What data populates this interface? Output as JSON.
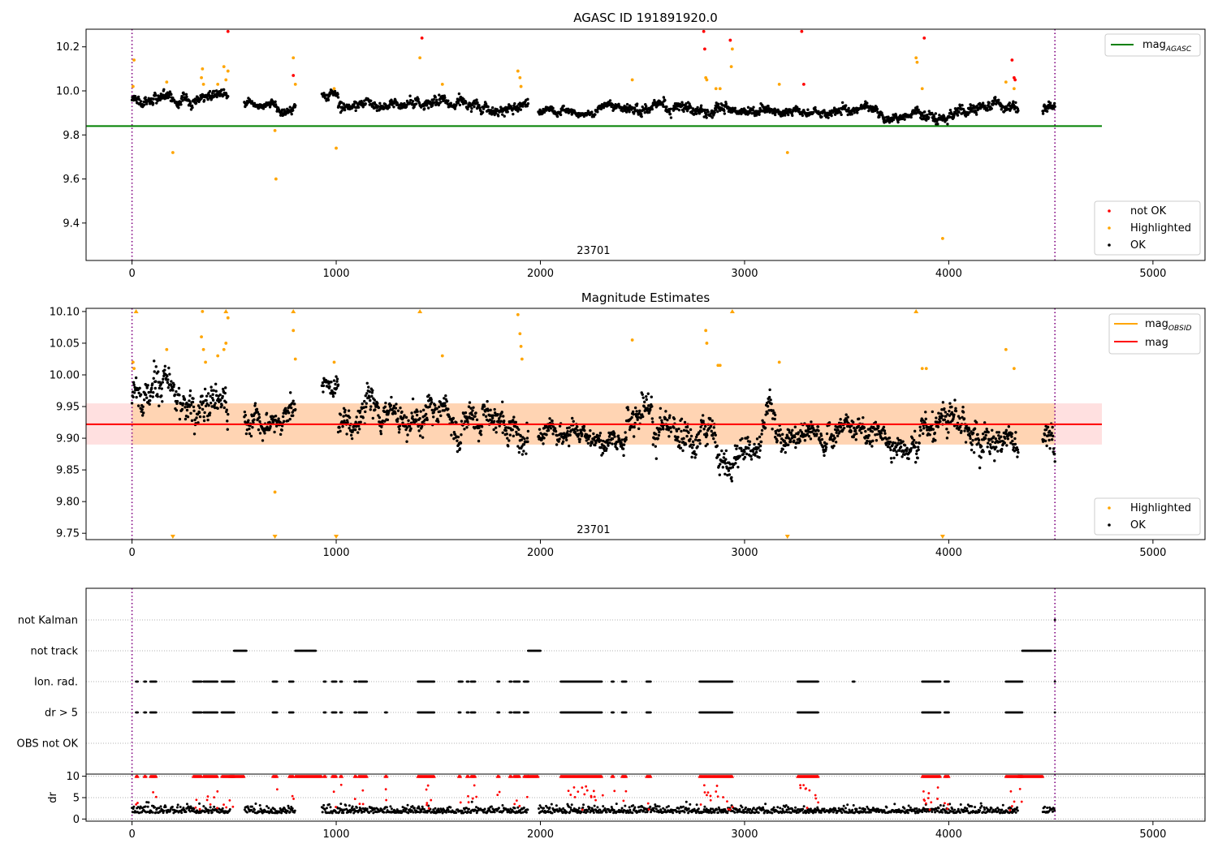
{
  "chart_data": [
    {
      "type": "scatter",
      "title": "AGASC ID 191891920.0",
      "xlim": [
        -225,
        5255
      ],
      "ylim": [
        9.23,
        10.28
      ],
      "xticks": [
        0,
        1000,
        2000,
        3000,
        4000,
        5000
      ],
      "yticks": [
        9.4,
        9.6,
        9.8,
        10.0,
        10.2
      ],
      "obsid_label": "23701",
      "obs_bounds": [
        0,
        4520
      ],
      "agasc_mag": 9.84,
      "legend_line": {
        "label": "mag",
        "subscript": "AGASC",
        "color": "#008000"
      },
      "legend_points": [
        {
          "label": "not OK",
          "color": "#ff0000"
        },
        {
          "label": "Highlighted",
          "color": "#ffa500"
        },
        {
          "label": "OK",
          "color": "#000000"
        }
      ],
      "series": [
        {
          "name": "OK",
          "color": "#000000",
          "segments": [
            {
              "x0": 0,
              "x1": 470,
              "base": 9.96,
              "noise": 0.02
            },
            {
              "x0": 550,
              "x1": 800,
              "base": 9.94,
              "noise": 0.015
            },
            {
              "x0": 930,
              "x1": 1010,
              "base": 9.985,
              "noise": 0.015
            },
            {
              "x0": 1010,
              "x1": 1940,
              "base": 9.935,
              "noise": 0.02
            },
            {
              "x0": 1990,
              "x1": 2420,
              "base": 9.905,
              "noise": 0.013
            },
            {
              "x0": 2420,
              "x1": 2640,
              "base": 9.925,
              "noise": 0.02
            },
            {
              "x0": 2650,
              "x1": 3150,
              "base": 9.91,
              "noise": 0.02
            },
            {
              "x0": 3150,
              "x1": 3830,
              "base": 9.9,
              "noise": 0.015
            },
            {
              "x0": 3830,
              "x1": 4340,
              "base": 9.905,
              "noise": 0.02
            },
            {
              "x0": 4460,
              "x1": 4520,
              "base": 9.91,
              "noise": 0.02
            }
          ]
        },
        {
          "name": "Highlighted",
          "color": "#ffa500",
          "points": [
            [
              10,
              10.14
            ],
            [
              5,
              10.02
            ],
            [
              170,
              10.04
            ],
            [
              200,
              9.72
            ],
            [
              340,
              10.06
            ],
            [
              345,
              10.1
            ],
            [
              350,
              10.03
            ],
            [
              420,
              10.03
            ],
            [
              450,
              10.11
            ],
            [
              460,
              10.05
            ],
            [
              470,
              10.09
            ],
            [
              700,
              9.82
            ],
            [
              705,
              9.6
            ],
            [
              790,
              10.15
            ],
            [
              800,
              10.03
            ],
            [
              990,
              10.01
            ],
            [
              1000,
              9.74
            ],
            [
              1410,
              10.15
            ],
            [
              1520,
              10.03
            ],
            [
              1890,
              10.09
            ],
            [
              1900,
              10.06
            ],
            [
              1905,
              10.02
            ],
            [
              2450,
              10.05
            ],
            [
              2810,
              10.06
            ],
            [
              2815,
              10.05
            ],
            [
              2880,
              10.01
            ],
            [
              2860,
              10.01
            ],
            [
              2935,
              10.11
            ],
            [
              2940,
              10.19
            ],
            [
              3170,
              10.03
            ],
            [
              3210,
              9.72
            ],
            [
              3840,
              10.15
            ],
            [
              3845,
              10.13
            ],
            [
              3870,
              10.01
            ],
            [
              3970,
              9.33
            ],
            [
              4280,
              10.04
            ],
            [
              4320,
              10.01
            ]
          ]
        },
        {
          "name": "not OK",
          "color": "#ff0000",
          "points": [
            [
              470,
              10.27
            ],
            [
              790,
              10.07
            ],
            [
              1420,
              10.24
            ],
            [
              2800,
              10.27
            ],
            [
              2805,
              10.19
            ],
            [
              2930,
              10.23
            ],
            [
              3280,
              10.27
            ],
            [
              3290,
              10.03
            ],
            [
              3880,
              10.24
            ],
            [
              4310,
              10.14
            ],
            [
              4320,
              10.06
            ],
            [
              4325,
              10.05
            ]
          ]
        }
      ]
    },
    {
      "type": "scatter",
      "title": "Magnitude Estimates",
      "xlim": [
        -225,
        5255
      ],
      "ylim": [
        9.74,
        10.105
      ],
      "xticks": [
        0,
        1000,
        2000,
        3000,
        4000,
        5000
      ],
      "yticks": [
        9.75,
        9.8,
        9.85,
        9.9,
        9.95,
        10.0,
        10.05,
        10.1
      ],
      "obsid_label": "23701",
      "obs_bounds": [
        0,
        4520
      ],
      "mag": 9.922,
      "mag_band": [
        9.89,
        9.955
      ],
      "mag_obsid_band": [
        9.89,
        9.955
      ],
      "legend_lines": [
        {
          "label": "mag",
          "subscript": "OBSID",
          "color": "#ffa500"
        },
        {
          "label": "mag",
          "color": "#ff0000"
        }
      ],
      "legend_points": [
        {
          "label": "Highlighted",
          "color": "#ffa500"
        },
        {
          "label": "OK",
          "color": "#000000"
        }
      ],
      "series": [
        {
          "name": "OK",
          "color": "#000000",
          "segments": [
            {
              "x0": 0,
              "x1": 470,
              "base": 9.955,
              "noise": 0.022
            },
            {
              "x0": 550,
              "x1": 800,
              "base": 9.935,
              "noise": 0.016
            },
            {
              "x0": 930,
              "x1": 1010,
              "base": 9.985,
              "noise": 0.015
            },
            {
              "x0": 1010,
              "x1": 1940,
              "base": 9.925,
              "noise": 0.02
            },
            {
              "x0": 1990,
              "x1": 2420,
              "base": 9.903,
              "noise": 0.013
            },
            {
              "x0": 2420,
              "x1": 2640,
              "base": 9.92,
              "noise": 0.022
            },
            {
              "x0": 2650,
              "x1": 3150,
              "base": 9.91,
              "noise": 0.022
            },
            {
              "x0": 3150,
              "x1": 3830,
              "base": 9.897,
              "noise": 0.015
            },
            {
              "x0": 3830,
              "x1": 4340,
              "base": 9.905,
              "noise": 0.02
            },
            {
              "x0": 4460,
              "x1": 4520,
              "base": 9.905,
              "noise": 0.02
            }
          ]
        },
        {
          "name": "Highlighted",
          "color": "#ffa500",
          "points": [
            [
              5,
              10.02
            ],
            [
              10,
              10.01
            ],
            [
              170,
              10.04
            ],
            [
              340,
              10.06
            ],
            [
              345,
              10.1
            ],
            [
              350,
              10.04
            ],
            [
              360,
              10.02
            ],
            [
              420,
              10.03
            ],
            [
              450,
              10.04
            ],
            [
              460,
              10.05
            ],
            [
              470,
              10.09
            ],
            [
              700,
              9.815
            ],
            [
              790,
              10.07
            ],
            [
              800,
              10.025
            ],
            [
              990,
              10.02
            ],
            [
              1520,
              10.03
            ],
            [
              1890,
              10.095
            ],
            [
              1900,
              10.065
            ],
            [
              1905,
              10.045
            ],
            [
              1910,
              10.025
            ],
            [
              2450,
              10.055
            ],
            [
              2810,
              10.07
            ],
            [
              2815,
              10.05
            ],
            [
              2870,
              10.015
            ],
            [
              2880,
              10.015
            ],
            [
              3170,
              10.02
            ],
            [
              3870,
              10.01
            ],
            [
              3890,
              10.01
            ],
            [
              4280,
              10.04
            ],
            [
              4320,
              10.01
            ]
          ]
        },
        {
          "name": "Highlighted clipped",
          "color": "#ffa500",
          "up": [
            20,
            460,
            790,
            1410,
            2940,
            3840
          ],
          "down": [
            200,
            700,
            1000,
            3210,
            3970
          ]
        }
      ]
    },
    {
      "type": "scatter",
      "title": "",
      "xlim": [
        -225,
        5255
      ],
      "xticks": [
        0,
        1000,
        2000,
        3000,
        4000,
        5000
      ],
      "obs_bounds": [
        0,
        4520
      ],
      "flag_labels": [
        "not Kalman",
        "not track",
        "Ion. rad.",
        "dr > 5",
        "OBS not OK"
      ],
      "flags": {
        "not track": [
          [
            500,
            560
          ],
          [
            800,
            900
          ],
          [
            1940,
            2000
          ],
          [
            4360,
            4500
          ]
        ],
        "Ion. rad.": [
          [
            20,
            30
          ],
          [
            60,
            70
          ],
          [
            90,
            120
          ],
          [
            300,
            340
          ],
          [
            350,
            420
          ],
          [
            440,
            500
          ],
          [
            690,
            710
          ],
          [
            770,
            790
          ],
          [
            940,
            950
          ],
          [
            980,
            1000
          ],
          [
            1020,
            1030
          ],
          [
            1090,
            1100
          ],
          [
            1110,
            1150
          ],
          [
            1400,
            1480
          ],
          [
            1600,
            1610
          ],
          [
            1610,
            1620
          ],
          [
            1640,
            1650
          ],
          [
            1660,
            1680
          ],
          [
            1790,
            1800
          ],
          [
            1850,
            1860
          ],
          [
            1870,
            1900
          ],
          [
            1920,
            1940
          ],
          [
            2100,
            2300
          ],
          [
            2350,
            2360
          ],
          [
            2400,
            2420
          ],
          [
            2520,
            2540
          ],
          [
            2780,
            2940
          ],
          [
            3260,
            3360
          ],
          [
            3530,
            3540
          ],
          [
            3870,
            3960
          ],
          [
            3980,
            4000
          ],
          [
            4280,
            4360
          ]
        ],
        "dr > 5": [
          [
            20,
            30
          ],
          [
            60,
            70
          ],
          [
            90,
            120
          ],
          [
            300,
            340
          ],
          [
            350,
            420
          ],
          [
            440,
            500
          ],
          [
            690,
            710
          ],
          [
            770,
            790
          ],
          [
            940,
            950
          ],
          [
            980,
            1000
          ],
          [
            1020,
            1030
          ],
          [
            1090,
            1100
          ],
          [
            1110,
            1150
          ],
          [
            1240,
            1250
          ],
          [
            1400,
            1480
          ],
          [
            1600,
            1610
          ],
          [
            1640,
            1650
          ],
          [
            1660,
            1680
          ],
          [
            1790,
            1800
          ],
          [
            1850,
            1860
          ],
          [
            1870,
            1900
          ],
          [
            1920,
            1940
          ],
          [
            2100,
            2300
          ],
          [
            2350,
            2360
          ],
          [
            2400,
            2420
          ],
          [
            2520,
            2540
          ],
          [
            2780,
            2940
          ],
          [
            3260,
            3360
          ],
          [
            3870,
            3960
          ],
          [
            3980,
            4000
          ],
          [
            4280,
            4360
          ]
        ]
      },
      "dr_panel": {
        "ylabel": "dr",
        "ylim": [
          -0.5,
          10.5
        ],
        "yticks": [
          0,
          5,
          10
        ],
        "cap": 10,
        "ok_base": 1.4,
        "ok_noise": 0.8
      }
    }
  ]
}
